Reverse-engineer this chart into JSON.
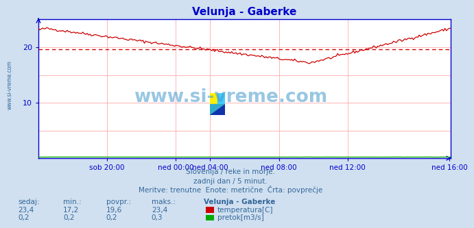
{
  "title": "Velunja - Gaberke",
  "title_color": "#0000cc",
  "bg_color": "#d0e0f0",
  "plot_bg_color": "#ffffff",
  "grid_color": "#ffaaaa",
  "axis_color": "#0000cc",
  "temp_line_color": "#cc0000",
  "flow_line_color": "#00aa00",
  "avg_line_color": "#cc0000",
  "avg_value": 19.6,
  "ylim": [
    0,
    25
  ],
  "yticks": [
    10,
    20
  ],
  "xlim": [
    0,
    288
  ],
  "xtick_positions": [
    48,
    96,
    120,
    168,
    216,
    287
  ],
  "xtick_labels": [
    "sob 20:00",
    "ned 00:00",
    "ned 04:00",
    "ned 08:00",
    "ned 12:00",
    "ned 16:00"
  ],
  "footer_lines": [
    "Slovenija / reke in morje.",
    "zadnji dan / 5 minut.",
    "Meritve: trenutne  Enote: metrične  Črta: povprečje"
  ],
  "footer_color": "#336699",
  "table_header": [
    "sedaj:",
    "min.:",
    "povpr.:",
    "maks.:",
    "Velunja - Gaberke"
  ],
  "table_row1": [
    "23,4",
    "17,2",
    "19,6",
    "23,4"
  ],
  "table_row2": [
    "0,2",
    "0,2",
    "0,2",
    "0,3"
  ],
  "legend_items": [
    "temperatura[C]",
    "pretok[m3/s]"
  ],
  "legend_colors": [
    "#cc0000",
    "#00aa00"
  ],
  "watermark_text": "www.si-vreme.com",
  "watermark_color": "#4499cc",
  "left_label": "www.si-vreme.com",
  "left_label_color": "#336699",
  "logo_colors": [
    "#ffee00",
    "#44ccff",
    "#1133aa",
    "#33aacc"
  ]
}
